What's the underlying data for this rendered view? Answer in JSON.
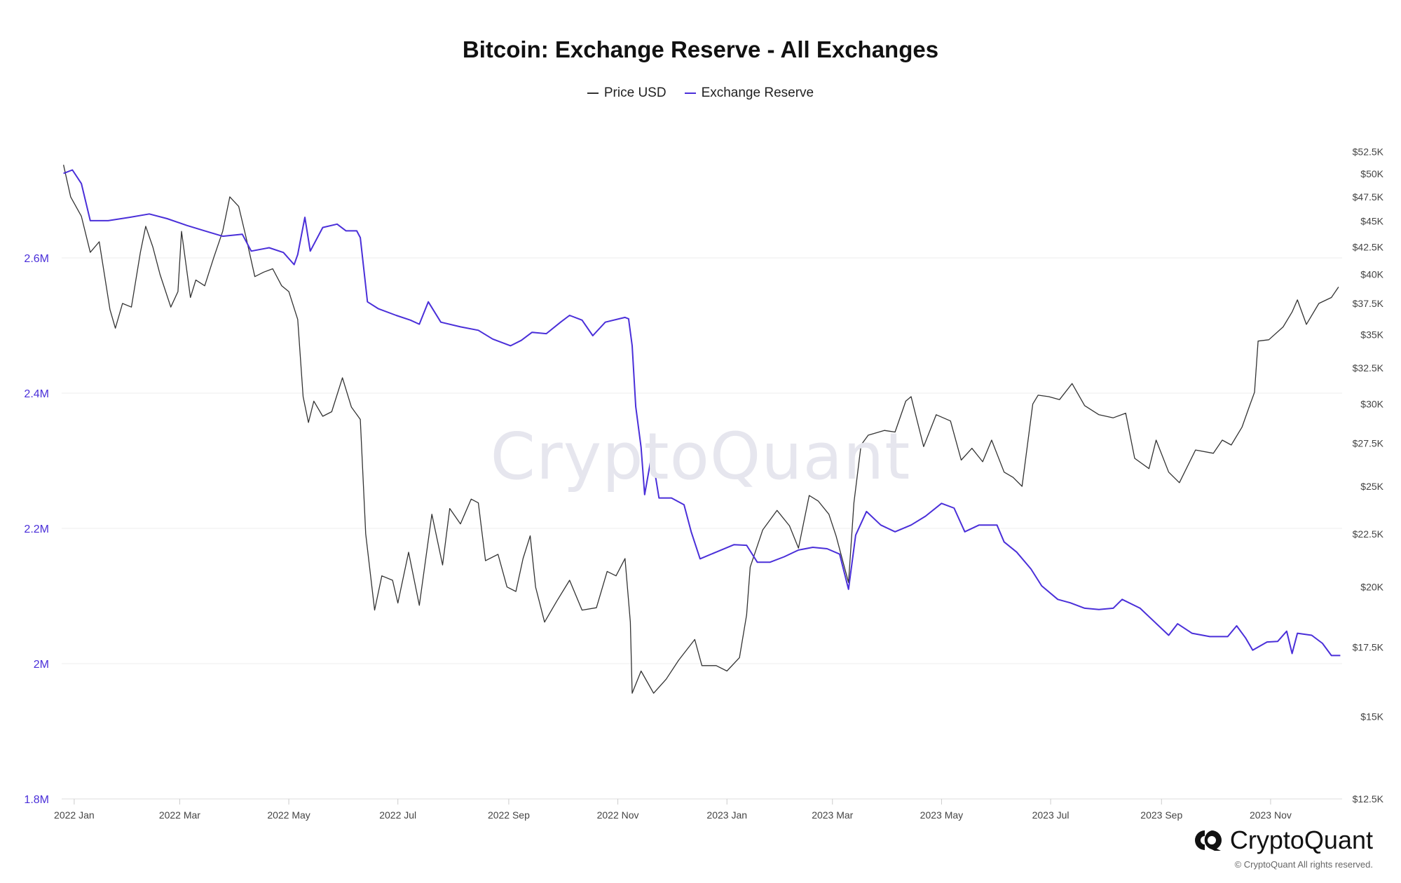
{
  "chart_data": {
    "type": "line",
    "title": "Bitcoin: Exchange Reserve - All Exchanges",
    "legend": {
      "position": "top-center",
      "entries": [
        "Price USD",
        "Exchange Reserve"
      ]
    },
    "grid": true,
    "x_ticks": [
      "2022 Jan",
      "2022 Mar",
      "2022 May",
      "2022 Jul",
      "2022 Sep",
      "2022 Nov",
      "2023 Jan",
      "2023 Mar",
      "2023 May",
      "2023 Jul",
      "2023 Sep",
      "2023 Nov"
    ],
    "x_tick_dates": [
      "2022-01-01",
      "2022-03-01",
      "2022-05-01",
      "2022-07-01",
      "2022-09-01",
      "2022-11-01",
      "2023-01-01",
      "2023-03-01",
      "2023-05-01",
      "2023-07-01",
      "2023-09-01",
      "2023-11-01"
    ],
    "xlim": [
      "2021-12-25",
      "2023-12-11"
    ],
    "left_axis": {
      "series": "Exchange Reserve",
      "ylim": [
        1800000,
        2800000
      ],
      "ticks": [
        1800000,
        2000000,
        2200000,
        2400000,
        2600000
      ],
      "tick_labels": [
        "1.8M",
        "2M",
        "2.2M",
        "2.4M",
        "2.6M"
      ]
    },
    "right_axis": {
      "series": "Price USD",
      "scale": "log",
      "ylim": [
        12500,
        56000
      ],
      "ticks": [
        12500,
        15000,
        17500,
        20000,
        22500,
        25000,
        27500,
        30000,
        32500,
        35000,
        37500,
        40000,
        42500,
        45000,
        47500,
        50000,
        52500
      ],
      "tick_labels": [
        "$12.5K",
        "$15K",
        "$17.5K",
        "$20K",
        "$22.5K",
        "$25K",
        "$27.5K",
        "$30K",
        "$32.5K",
        "$35K",
        "$37.5K",
        "$40K",
        "$42.5K",
        "$45K",
        "$47.5K",
        "$50K",
        "$52.5K"
      ]
    },
    "series": [
      {
        "name": "Price USD",
        "axis": "right",
        "color": "#333333",
        "points": [
          [
            "2021-12-26",
            51000
          ],
          [
            "2021-12-30",
            47500
          ],
          [
            "2022-01-05",
            45500
          ],
          [
            "2022-01-10",
            42000
          ],
          [
            "2022-01-15",
            43000
          ],
          [
            "2022-01-21",
            37000
          ],
          [
            "2022-01-24",
            35500
          ],
          [
            "2022-01-28",
            37500
          ],
          [
            "2022-02-02",
            37200
          ],
          [
            "2022-02-07",
            42000
          ],
          [
            "2022-02-10",
            44500
          ],
          [
            "2022-02-14",
            42500
          ],
          [
            "2022-02-18",
            40000
          ],
          [
            "2022-02-24",
            37200
          ],
          [
            "2022-02-28",
            38500
          ],
          [
            "2022-03-02",
            44000
          ],
          [
            "2022-03-07",
            38000
          ],
          [
            "2022-03-10",
            39500
          ],
          [
            "2022-03-15",
            39000
          ],
          [
            "2022-03-20",
            41500
          ],
          [
            "2022-03-25",
            44000
          ],
          [
            "2022-03-29",
            47500
          ],
          [
            "2022-04-03",
            46500
          ],
          [
            "2022-04-07",
            43500
          ],
          [
            "2022-04-12",
            39800
          ],
          [
            "2022-04-17",
            40200
          ],
          [
            "2022-04-22",
            40500
          ],
          [
            "2022-04-27",
            39000
          ],
          [
            "2022-05-01",
            38500
          ],
          [
            "2022-05-06",
            36200
          ],
          [
            "2022-05-09",
            30500
          ],
          [
            "2022-05-12",
            28800
          ],
          [
            "2022-05-15",
            30200
          ],
          [
            "2022-05-20",
            29200
          ],
          [
            "2022-05-25",
            29500
          ],
          [
            "2022-05-31",
            31800
          ],
          [
            "2022-06-05",
            29800
          ],
          [
            "2022-06-10",
            29000
          ],
          [
            "2022-06-13",
            22500
          ],
          [
            "2022-06-18",
            19000
          ],
          [
            "2022-06-22",
            20500
          ],
          [
            "2022-06-28",
            20300
          ],
          [
            "2022-07-01",
            19300
          ],
          [
            "2022-07-07",
            21600
          ],
          [
            "2022-07-13",
            19200
          ],
          [
            "2022-07-20",
            23500
          ],
          [
            "2022-07-26",
            21000
          ],
          [
            "2022-07-30",
            23800
          ],
          [
            "2022-08-05",
            23000
          ],
          [
            "2022-08-11",
            24300
          ],
          [
            "2022-08-15",
            24100
          ],
          [
            "2022-08-19",
            21200
          ],
          [
            "2022-08-26",
            21500
          ],
          [
            "2022-08-31",
            20000
          ],
          [
            "2022-09-05",
            19800
          ],
          [
            "2022-09-09",
            21300
          ],
          [
            "2022-09-13",
            22400
          ],
          [
            "2022-09-16",
            20000
          ],
          [
            "2022-09-21",
            18500
          ],
          [
            "2022-09-28",
            19400
          ],
          [
            "2022-10-05",
            20300
          ],
          [
            "2022-10-12",
            19000
          ],
          [
            "2022-10-20",
            19100
          ],
          [
            "2022-10-26",
            20700
          ],
          [
            "2022-10-31",
            20500
          ],
          [
            "2022-11-05",
            21300
          ],
          [
            "2022-11-08",
            18500
          ],
          [
            "2022-11-09",
            15800
          ],
          [
            "2022-11-14",
            16600
          ],
          [
            "2022-11-21",
            15800
          ],
          [
            "2022-11-28",
            16300
          ],
          [
            "2022-12-05",
            17000
          ],
          [
            "2022-12-14",
            17800
          ],
          [
            "2022-12-18",
            16800
          ],
          [
            "2022-12-26",
            16800
          ],
          [
            "2023-01-01",
            16600
          ],
          [
            "2023-01-08",
            17100
          ],
          [
            "2023-01-12",
            18800
          ],
          [
            "2023-01-14",
            20900
          ],
          [
            "2023-01-21",
            22700
          ],
          [
            "2023-01-29",
            23700
          ],
          [
            "2023-02-05",
            22900
          ],
          [
            "2023-02-10",
            21800
          ],
          [
            "2023-02-16",
            24500
          ],
          [
            "2023-02-21",
            24200
          ],
          [
            "2023-02-27",
            23500
          ],
          [
            "2023-03-03",
            22400
          ],
          [
            "2023-03-10",
            20200
          ],
          [
            "2023-03-13",
            24100
          ],
          [
            "2023-03-17",
            27400
          ],
          [
            "2023-03-21",
            28000
          ],
          [
            "2023-03-30",
            28300
          ],
          [
            "2023-04-05",
            28200
          ],
          [
            "2023-04-11",
            30200
          ],
          [
            "2023-04-14",
            30500
          ],
          [
            "2023-04-21",
            27300
          ],
          [
            "2023-04-28",
            29300
          ],
          [
            "2023-05-06",
            28900
          ],
          [
            "2023-05-12",
            26500
          ],
          [
            "2023-05-18",
            27200
          ],
          [
            "2023-05-24",
            26400
          ],
          [
            "2023-05-29",
            27700
          ],
          [
            "2023-06-05",
            25800
          ],
          [
            "2023-06-10",
            25500
          ],
          [
            "2023-06-15",
            25000
          ],
          [
            "2023-06-21",
            30000
          ],
          [
            "2023-06-24",
            30600
          ],
          [
            "2023-06-30",
            30500
          ],
          [
            "2023-07-06",
            30300
          ],
          [
            "2023-07-13",
            31400
          ],
          [
            "2023-07-20",
            29900
          ],
          [
            "2023-07-28",
            29300
          ],
          [
            "2023-08-05",
            29100
          ],
          [
            "2023-08-12",
            29400
          ],
          [
            "2023-08-17",
            26600
          ],
          [
            "2023-08-25",
            26000
          ],
          [
            "2023-08-29",
            27700
          ],
          [
            "2023-09-05",
            25800
          ],
          [
            "2023-09-11",
            25200
          ],
          [
            "2023-09-20",
            27100
          ],
          [
            "2023-09-30",
            26900
          ],
          [
            "2023-10-05",
            27700
          ],
          [
            "2023-10-10",
            27400
          ],
          [
            "2023-10-16",
            28500
          ],
          [
            "2023-10-20",
            29800
          ],
          [
            "2023-10-23",
            30800
          ],
          [
            "2023-10-25",
            34500
          ],
          [
            "2023-10-31",
            34600
          ],
          [
            "2023-11-08",
            35600
          ],
          [
            "2023-11-13",
            36800
          ],
          [
            "2023-11-16",
            37800
          ],
          [
            "2023-11-21",
            35800
          ],
          [
            "2023-11-28",
            37500
          ],
          [
            "2023-12-05",
            38000
          ],
          [
            "2023-12-09",
            38900
          ]
        ]
      },
      {
        "name": "Exchange Reserve",
        "axis": "left",
        "color": "#4a2fd9",
        "points": [
          [
            "2021-12-26",
            2725000
          ],
          [
            "2021-12-31",
            2730000
          ],
          [
            "2022-01-05",
            2710000
          ],
          [
            "2022-01-10",
            2655000
          ],
          [
            "2022-01-20",
            2655000
          ],
          [
            "2022-02-01",
            2660000
          ],
          [
            "2022-02-12",
            2665000
          ],
          [
            "2022-02-22",
            2658000
          ],
          [
            "2022-03-05",
            2648000
          ],
          [
            "2022-03-15",
            2640000
          ],
          [
            "2022-03-25",
            2632000
          ],
          [
            "2022-04-05",
            2635000
          ],
          [
            "2022-04-10",
            2610000
          ],
          [
            "2022-04-20",
            2615000
          ],
          [
            "2022-04-28",
            2608000
          ],
          [
            "2022-05-04",
            2590000
          ],
          [
            "2022-05-06",
            2605000
          ],
          [
            "2022-05-10",
            2660000
          ],
          [
            "2022-05-13",
            2610000
          ],
          [
            "2022-05-20",
            2645000
          ],
          [
            "2022-05-28",
            2650000
          ],
          [
            "2022-06-02",
            2640000
          ],
          [
            "2022-06-08",
            2640000
          ],
          [
            "2022-06-10",
            2630000
          ],
          [
            "2022-06-14",
            2535000
          ],
          [
            "2022-06-20",
            2525000
          ],
          [
            "2022-06-30",
            2515000
          ],
          [
            "2022-07-08",
            2508000
          ],
          [
            "2022-07-13",
            2502000
          ],
          [
            "2022-07-18",
            2535000
          ],
          [
            "2022-07-25",
            2505000
          ],
          [
            "2022-08-05",
            2498000
          ],
          [
            "2022-08-15",
            2493000
          ],
          [
            "2022-08-23",
            2480000
          ],
          [
            "2022-09-02",
            2470000
          ],
          [
            "2022-09-08",
            2478000
          ],
          [
            "2022-09-14",
            2490000
          ],
          [
            "2022-09-22",
            2488000
          ],
          [
            "2022-09-30",
            2505000
          ],
          [
            "2022-10-05",
            2515000
          ],
          [
            "2022-10-12",
            2508000
          ],
          [
            "2022-10-18",
            2485000
          ],
          [
            "2022-10-25",
            2505000
          ],
          [
            "2022-11-05",
            2512000
          ],
          [
            "2022-11-07",
            2510000
          ],
          [
            "2022-11-09",
            2470000
          ],
          [
            "2022-11-11",
            2380000
          ],
          [
            "2022-11-14",
            2320000
          ],
          [
            "2022-11-16",
            2250000
          ],
          [
            "2022-11-20",
            2310000
          ],
          [
            "2022-11-24",
            2245000
          ],
          [
            "2022-12-01",
            2245000
          ],
          [
            "2022-12-08",
            2235000
          ],
          [
            "2022-12-12",
            2195000
          ],
          [
            "2022-12-17",
            2155000
          ],
          [
            "2022-12-26",
            2165000
          ],
          [
            "2023-01-05",
            2176000
          ],
          [
            "2023-01-12",
            2175000
          ],
          [
            "2023-01-18",
            2150000
          ],
          [
            "2023-01-25",
            2150000
          ],
          [
            "2023-02-02",
            2158000
          ],
          [
            "2023-02-10",
            2168000
          ],
          [
            "2023-02-18",
            2172000
          ],
          [
            "2023-02-26",
            2170000
          ],
          [
            "2023-03-05",
            2162000
          ],
          [
            "2023-03-10",
            2110000
          ],
          [
            "2023-03-14",
            2190000
          ],
          [
            "2023-03-20",
            2225000
          ],
          [
            "2023-03-28",
            2205000
          ],
          [
            "2023-04-05",
            2195000
          ],
          [
            "2023-04-14",
            2205000
          ],
          [
            "2023-04-22",
            2218000
          ],
          [
            "2023-05-01",
            2237000
          ],
          [
            "2023-05-08",
            2230000
          ],
          [
            "2023-05-14",
            2195000
          ],
          [
            "2023-05-22",
            2205000
          ],
          [
            "2023-06-01",
            2205000
          ],
          [
            "2023-06-05",
            2180000
          ],
          [
            "2023-06-12",
            2165000
          ],
          [
            "2023-06-20",
            2140000
          ],
          [
            "2023-06-26",
            2115000
          ],
          [
            "2023-07-05",
            2095000
          ],
          [
            "2023-07-12",
            2090000
          ],
          [
            "2023-07-20",
            2082000
          ],
          [
            "2023-07-28",
            2080000
          ],
          [
            "2023-08-05",
            2082000
          ],
          [
            "2023-08-10",
            2095000
          ],
          [
            "2023-08-20",
            2082000
          ],
          [
            "2023-08-28",
            2062000
          ],
          [
            "2023-09-05",
            2042000
          ],
          [
            "2023-09-10",
            2059000
          ],
          [
            "2023-09-18",
            2045000
          ],
          [
            "2023-09-28",
            2040000
          ],
          [
            "2023-10-08",
            2040000
          ],
          [
            "2023-10-13",
            2056000
          ],
          [
            "2023-10-18",
            2038000
          ],
          [
            "2023-10-22",
            2020000
          ],
          [
            "2023-10-30",
            2032000
          ],
          [
            "2023-11-05",
            2033000
          ],
          [
            "2023-11-10",
            2048000
          ],
          [
            "2023-11-13",
            2015000
          ],
          [
            "2023-11-16",
            2045000
          ],
          [
            "2023-11-24",
            2042000
          ],
          [
            "2023-11-30",
            2030000
          ],
          [
            "2023-12-05",
            2012000
          ],
          [
            "2023-12-10",
            2012000
          ]
        ]
      }
    ]
  },
  "watermark": "CryptoQuant",
  "brand": {
    "name": "CryptoQuant",
    "copyright": "© CryptoQuant All rights reserved."
  },
  "colors": {
    "reserve": "#4a2fd9",
    "price": "#333333",
    "grid": "#eeeeee",
    "left_tick": "#4a2fd9",
    "right_tick": "#444444"
  }
}
